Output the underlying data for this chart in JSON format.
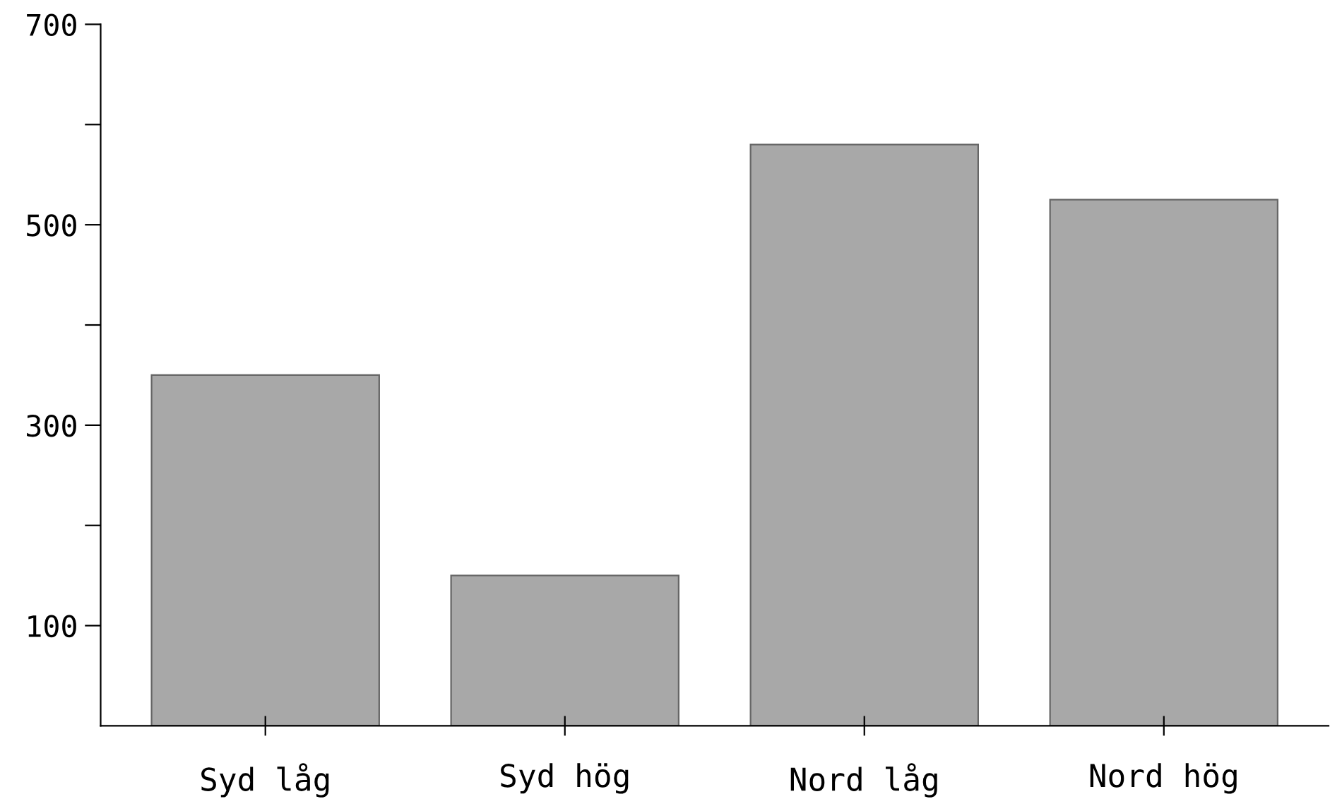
{
  "chart_data": {
    "type": "bar",
    "categories": [
      "Syd låg",
      "Syd hög",
      "Nord låg",
      "Nord hög"
    ],
    "values": [
      350,
      150,
      580,
      525
    ],
    "color": "#a8a8a8",
    "ylim": [
      0,
      700
    ],
    "yticks": [
      {
        "value": 100,
        "label": "100"
      },
      {
        "value": 200,
        "label": null
      },
      {
        "value": 300,
        "label": "300"
      },
      {
        "value": 400,
        "label": null
      },
      {
        "value": 500,
        "label": "500"
      },
      {
        "value": 600,
        "label": null
      },
      {
        "value": 700,
        "label": "700"
      }
    ],
    "grid": false
  }
}
